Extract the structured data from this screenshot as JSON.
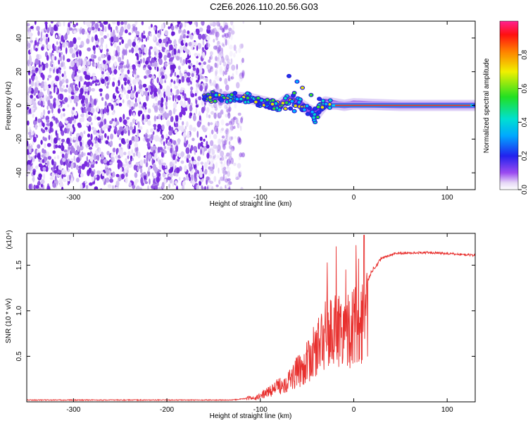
{
  "title": "C2E6.2026.110.20.56.G03",
  "chart_data": [
    {
      "type": "heatmap",
      "xlabel": "Height of straight line (km)",
      "ylabel": "Frequency (Hz)",
      "xlim": [
        -350,
        130
      ],
      "ylim": [
        -50,
        50
      ],
      "xticks": [
        -300,
        -200,
        -100,
        0,
        100
      ],
      "yticks": [
        -40,
        -20,
        0,
        20,
        40
      ],
      "colorbar": {
        "label": "Normalized spectral amplitude",
        "range": [
          0,
          1
        ],
        "ticks": [
          "0.0",
          "0.2",
          "0.4",
          "0.6",
          "0.8"
        ]
      },
      "features": {
        "noise_region_x": [
          -350,
          -130
        ],
        "doppler_track": [
          {
            "x": -160,
            "y": 5
          },
          {
            "x": -130,
            "y": 5
          },
          {
            "x": -110,
            "y": 4
          },
          {
            "x": -95,
            "y": 2
          },
          {
            "x": -80,
            "y": 0
          },
          {
            "x": -70,
            "y": 4
          },
          {
            "x": -60,
            "y": 2
          },
          {
            "x": -50,
            "y": -2
          },
          {
            "x": -40,
            "y": -5
          },
          {
            "x": -30,
            "y": 2
          },
          {
            "x": -10,
            "y": 0
          },
          {
            "x": 0,
            "y": 1
          },
          {
            "x": 50,
            "y": 0
          },
          {
            "x": 130,
            "y": 0
          }
        ]
      }
    },
    {
      "type": "line",
      "xlabel": "Height of straight line (km)",
      "ylabel": "SNR (10 * v/v)",
      "yscale_label": "(x10⁴)",
      "xlim": [
        -350,
        130
      ],
      "ylim": [
        0,
        1.85
      ],
      "xticks": [
        -300,
        -200,
        -100,
        0,
        100
      ],
      "yticks": [
        0.5,
        1.0,
        1.5
      ],
      "ytick_labels": [
        "0.5",
        "1.0",
        "1.5"
      ],
      "series": [
        {
          "color": "#e8302e",
          "envelope": [
            {
              "x": -350,
              "y": 0.02
            },
            {
              "x": -130,
              "y": 0.02
            },
            {
              "x": -105,
              "y": 0.05
            },
            {
              "x": -90,
              "y": 0.15
            },
            {
              "x": -70,
              "y": 0.3
            },
            {
              "x": -50,
              "y": 0.55
            },
            {
              "x": -30,
              "y": 0.95
            },
            {
              "x": -15,
              "y": 1.05
            },
            {
              "x": 0,
              "y": 1.05
            },
            {
              "x": 10,
              "y": 1.2
            },
            {
              "x": 20,
              "y": 1.45
            },
            {
              "x": 30,
              "y": 1.58
            },
            {
              "x": 45,
              "y": 1.63
            },
            {
              "x": 80,
              "y": 1.64
            },
            {
              "x": 130,
              "y": 1.61
            }
          ]
        }
      ]
    }
  ]
}
